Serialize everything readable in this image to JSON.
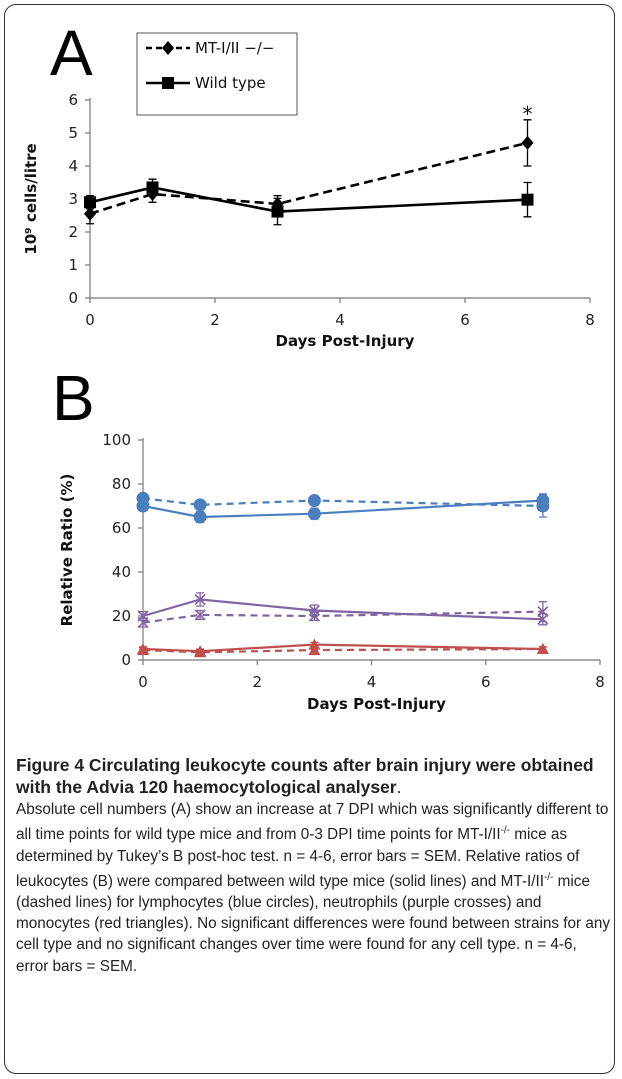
{
  "chart_data": [
    {
      "panel_label": "A",
      "type": "line",
      "xlabel": "Days Post-Injury",
      "ylabel": "10⁹ cells/litre",
      "xlim": [
        0,
        8
      ],
      "ylim": [
        0,
        6
      ],
      "xticks": [
        0,
        2,
        4,
        6,
        8
      ],
      "yticks": [
        0,
        1,
        2,
        3,
        4,
        5,
        6
      ],
      "legend_position": "top-left",
      "series": [
        {
          "name": "MT-I/II −/−",
          "style": "dashed",
          "marker": "diamond",
          "color": "#000000",
          "x": [
            0,
            1,
            3,
            7
          ],
          "y": [
            2.55,
            3.15,
            2.85,
            4.7
          ],
          "err": [
            0.3,
            0.25,
            0.25,
            0.7
          ]
        },
        {
          "name": "Wild type",
          "style": "solid",
          "marker": "square",
          "color": "#000000",
          "x": [
            0,
            1,
            3,
            7
          ],
          "y": [
            2.9,
            3.35,
            2.62,
            2.98
          ],
          "err": [
            0.2,
            0.25,
            0.4,
            0.52
          ]
        }
      ],
      "annotations": [
        {
          "text": "*",
          "x": 7,
          "y": 5.55
        }
      ]
    },
    {
      "panel_label": "B",
      "type": "line",
      "xlabel": "Days Post-Injury",
      "ylabel": "Relative Ratio (%)",
      "xlim": [
        0,
        8
      ],
      "ylim": [
        0,
        100
      ],
      "xticks": [
        0,
        2,
        4,
        6,
        8
      ],
      "yticks": [
        0,
        20,
        40,
        60,
        80,
        100
      ],
      "series": [
        {
          "group": "wild type",
          "cell": "lymphocytes",
          "style": "solid",
          "marker": "circle",
          "color": "#4a7ebf",
          "x": [
            0,
            1,
            3,
            7
          ],
          "y": [
            70,
            65,
            66.5,
            72.5
          ],
          "err": [
            2,
            2.5,
            2.5,
            3
          ]
        },
        {
          "group": "MT-I/II-/-",
          "cell": "lymphocytes",
          "style": "dashed",
          "marker": "circle",
          "color": "#4a7ebf",
          "x": [
            0,
            1,
            3,
            7
          ],
          "y": [
            73.5,
            70.5,
            72.5,
            70
          ],
          "err": [
            2,
            1.5,
            1.5,
            5
          ]
        },
        {
          "group": "wild type",
          "cell": "neutrophils",
          "style": "solid",
          "marker": "cross",
          "color": "#8064a2",
          "x": [
            0,
            1,
            3,
            7
          ],
          "y": [
            20,
            27.5,
            22.5,
            18.5
          ],
          "err": [
            2,
            3,
            2.5,
            2.5
          ]
        },
        {
          "group": "MT-I/II-/-",
          "cell": "neutrophils",
          "style": "dashed",
          "marker": "cross",
          "color": "#8064a2",
          "x": [
            0,
            1,
            3,
            7
          ],
          "y": [
            17,
            20.5,
            20,
            22
          ],
          "err": [
            2,
            2,
            2,
            4.5
          ]
        },
        {
          "group": "wild type",
          "cell": "monocytes",
          "style": "solid",
          "marker": "triangle",
          "color": "#c0504d",
          "x": [
            0,
            1,
            3,
            7
          ],
          "y": [
            5,
            4,
            7,
            5
          ],
          "err": [
            1,
            1,
            1,
            1
          ]
        },
        {
          "group": "MT-I/II-/-",
          "cell": "monocytes",
          "style": "dashed",
          "marker": "triangle",
          "color": "#c0504d",
          "x": [
            0,
            1,
            3,
            7
          ],
          "y": [
            4.5,
            3.5,
            4.5,
            5
          ],
          "err": [
            1,
            1,
            1,
            1
          ]
        }
      ]
    }
  ],
  "caption": {
    "title": "Figure 4 Circulating leukocyte counts after brain injury were obtained with the Advia 120 haemocytological analyser",
    "title_end": ".",
    "body": {
      "p1": "Absolute cell numbers (A) show an increase at 7 DPI which was significantly different to all time points for wild type mice and from 0-3 DPI time points for MT-I/II",
      "sup1": "-/-",
      "p2": " mice as determined by Tukey’s B post-hoc test. n = 4-6, error bars = SEM. Relative ratios of leukocytes (B) were compared between wild type mice (solid lines) and MT-I/II",
      "sup2": "-/-",
      "p3": " mice (dashed lines) for lymphocytes (blue circles), neutrophils (purple crosses) and monocytes (red triangles). No significant differences were found between strains for any cell type and no significant changes over time were found for any cell type. n = 4-6, error bars = SEM."
    }
  }
}
